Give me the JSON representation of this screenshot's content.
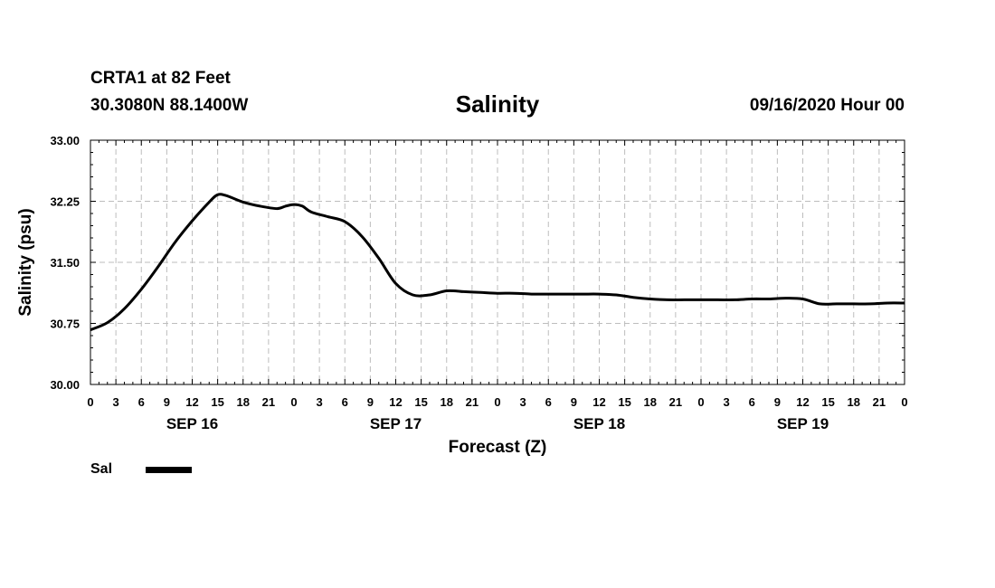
{
  "header": {
    "station": "CRTA1 at 82 Feet",
    "coords": "30.3080N 88.1400W",
    "title": "Salinity",
    "date": "09/16/2020 Hour 00"
  },
  "legend": {
    "label": "Sal"
  },
  "chart_data": {
    "type": "line",
    "title": "Salinity",
    "xlabel": "Forecast (Z)",
    "ylabel": "Salinity (psu)",
    "ylim": [
      30.0,
      33.0
    ],
    "yticks": [
      "30.00",
      "30.75",
      "31.50",
      "32.25",
      "33.00"
    ],
    "xlim": [
      0,
      96
    ],
    "xunit": "forecast hour",
    "xtick_labels": [
      "0",
      "3",
      "6",
      "9",
      "12",
      "15",
      "18",
      "21",
      "0",
      "3",
      "6",
      "9",
      "12",
      "15",
      "18",
      "21",
      "0",
      "3",
      "6",
      "9",
      "12",
      "15",
      "18",
      "21",
      "0",
      "3",
      "6",
      "9",
      "12",
      "15",
      "18",
      "21",
      "0"
    ],
    "day_labels": [
      {
        "label": "SEP 16",
        "hour": 12
      },
      {
        "label": "SEP 17",
        "hour": 36
      },
      {
        "label": "SEP 18",
        "hour": 60
      },
      {
        "label": "SEP 19",
        "hour": 84
      }
    ],
    "grid": true,
    "series": [
      {
        "name": "Sal",
        "color": "#000000",
        "x": [
          0,
          2,
          4,
          6,
          8,
          10,
          12,
          14,
          15,
          16,
          18,
          20,
          22,
          23,
          24,
          25,
          26,
          28,
          30,
          32,
          34,
          36,
          38,
          40,
          42,
          44,
          46,
          48,
          50,
          52,
          54,
          56,
          58,
          60,
          62,
          64,
          66,
          68,
          70,
          72,
          74,
          76,
          78,
          80,
          82,
          84,
          86,
          88,
          90,
          92,
          94,
          96
        ],
        "y": [
          30.67,
          30.76,
          30.93,
          31.17,
          31.45,
          31.75,
          32.01,
          32.24,
          32.33,
          32.32,
          32.24,
          32.19,
          32.16,
          32.19,
          32.21,
          32.19,
          32.12,
          32.06,
          32.0,
          31.82,
          31.55,
          31.24,
          31.1,
          31.1,
          31.15,
          31.14,
          31.13,
          31.12,
          31.12,
          31.11,
          31.11,
          31.11,
          31.11,
          31.11,
          31.1,
          31.07,
          31.05,
          31.04,
          31.04,
          31.04,
          31.04,
          31.04,
          31.05,
          31.05,
          31.06,
          31.05,
          30.99,
          30.99,
          30.99,
          30.99,
          31.0,
          31.0
        ]
      }
    ]
  }
}
